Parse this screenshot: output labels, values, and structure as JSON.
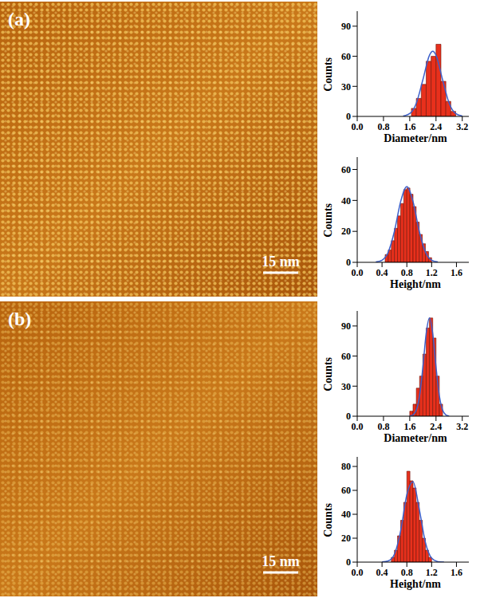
{
  "images": [
    {
      "panel": "(a)",
      "scale_bar": "15 nm"
    },
    {
      "panel": "(b)",
      "scale_bar": "15 nm"
    }
  ],
  "chart_data": [
    {
      "type": "histogram",
      "panel": "(a)",
      "xlabel": "Diameter/nm",
      "ylabel": "Counts",
      "color": "#e8301c",
      "bins": [
        1.65,
        1.8,
        1.95,
        2.1,
        2.25,
        2.4,
        2.55,
        2.7,
        2.85,
        3.0
      ],
      "counts": [
        8,
        18,
        32,
        55,
        60,
        72,
        35,
        15,
        5
      ],
      "fit": {
        "color": "#3d5fc9",
        "x": [
          1.4,
          1.6,
          1.8,
          2.0,
          2.2,
          2.3,
          2.4,
          2.6,
          2.8,
          3.0,
          3.2
        ],
        "values": [
          0.4,
          2.9,
          13.2,
          36.6,
          61,
          65,
          61,
          36.6,
          13.2,
          2.9,
          0.4
        ]
      },
      "xlim": [
        0,
        3.4
      ],
      "xticks": [
        {
          "value": 0,
          "label": "0.0"
        },
        0.8,
        1.6,
        2.4,
        3.2
      ],
      "ylim": [
        0,
        105
      ],
      "yticks": [
        0,
        30,
        60,
        90
      ]
    },
    {
      "type": "histogram",
      "panel": "(a)",
      "xlabel": "Height/nm",
      "ylabel": "Counts",
      "color": "#e8301c",
      "bins": [
        0.45,
        0.5,
        0.55,
        0.6,
        0.65,
        0.7,
        0.75,
        0.8,
        0.85,
        0.9,
        0.95,
        1.0,
        1.05,
        1.1,
        1.15,
        1.2
      ],
      "counts": [
        5,
        8,
        14,
        22,
        30,
        38,
        47,
        48,
        44,
        36,
        26,
        18,
        12,
        7,
        3
      ],
      "fit": {
        "color": "#3d5fc9",
        "x": [
          0.3,
          0.4,
          0.5,
          0.6,
          0.7,
          0.8,
          0.9,
          1.0,
          1.1,
          1.2,
          1.3
        ],
        "values": [
          0.2,
          1.4,
          6.6,
          20.1,
          39.2,
          49,
          39.2,
          20.1,
          6.6,
          1.4,
          0.2
        ]
      },
      "xlim": [
        0,
        1.8
      ],
      "xticks": [
        {
          "value": 0,
          "label": "0.0"
        },
        0.4,
        0.8,
        1.2,
        1.6
      ],
      "ylim": [
        0,
        68
      ],
      "yticks": [
        0,
        20,
        40,
        60
      ]
    },
    {
      "type": "histogram",
      "panel": "(b)",
      "xlabel": "Diameter/nm",
      "ylabel": "Counts",
      "color": "#e8301c",
      "bins": [
        1.6,
        1.7,
        1.8,
        1.9,
        2.0,
        2.1,
        2.2,
        2.3,
        2.4,
        2.5,
        2.6
      ],
      "counts": [
        5,
        12,
        28,
        40,
        62,
        88,
        98,
        78,
        40,
        12
      ],
      "fit": {
        "color": "#3d5fc9",
        "x": [
          1.6,
          1.7,
          1.8,
          1.9,
          2.0,
          2.1,
          2.2,
          2.3,
          2.4,
          2.5,
          2.6,
          2.7,
          2.8
        ],
        "values": [
          0.2,
          1.3,
          6.1,
          20.6,
          49,
          82.4,
          98,
          82.4,
          49,
          20.6,
          6.1,
          1.3,
          0.2
        ]
      },
      "xlim": [
        0,
        3.4
      ],
      "xticks": [
        {
          "value": 0,
          "label": "0.0"
        },
        0.8,
        1.6,
        2.4,
        3.2
      ],
      "ylim": [
        0,
        105
      ],
      "yticks": [
        0,
        30,
        60,
        90
      ]
    },
    {
      "type": "histogram",
      "panel": "(b)",
      "xlabel": "Height/nm",
      "ylabel": "Counts",
      "color": "#e8301c",
      "bins": [
        0.55,
        0.6,
        0.65,
        0.7,
        0.75,
        0.8,
        0.85,
        0.9,
        0.95,
        1.0,
        1.05,
        1.1,
        1.15,
        1.2
      ],
      "counts": [
        4,
        10,
        22,
        35,
        50,
        76,
        68,
        62,
        50,
        35,
        20,
        10,
        4
      ],
      "fit": {
        "color": "#3d5fc9",
        "x": [
          0.4,
          0.5,
          0.6,
          0.7,
          0.8,
          0.9,
          1.0,
          1.1,
          1.2,
          1.3,
          1.4
        ],
        "values": [
          0.1,
          1,
          6.7,
          26.1,
          56.3,
          67.2,
          44.4,
          16.3,
          3.3,
          0.4,
          0
        ]
      },
      "xlim": [
        0,
        1.8
      ],
      "xticks": [
        {
          "value": 0,
          "label": "0.0"
        },
        0.4,
        0.8,
        1.2,
        1.6
      ],
      "ylim": [
        0,
        88
      ],
      "yticks": [
        0,
        20,
        40,
        60,
        80
      ]
    }
  ]
}
